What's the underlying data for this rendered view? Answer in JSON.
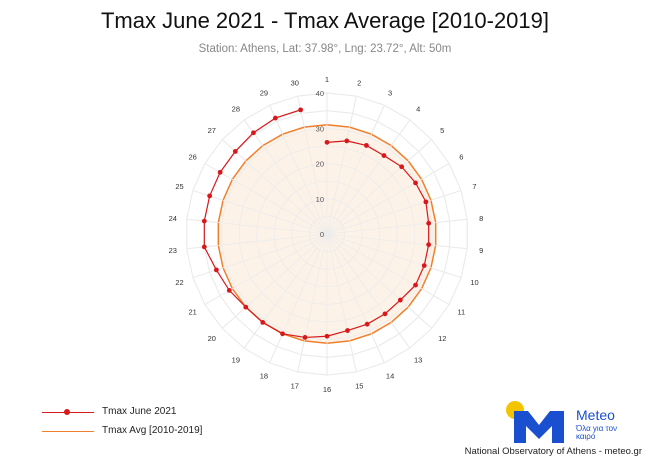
{
  "chart_data": {
    "type": "polar-line",
    "title": "Tmax June 2021 - Tmax Average [2010-2019]",
    "subtitle": "Station: Athens, Lat: 37.98°, Lng: 23.72°, Alt: 50m",
    "categories": [
      "1",
      "2",
      "3",
      "4",
      "5",
      "6",
      "7",
      "8",
      "9",
      "10",
      "11",
      "12",
      "13",
      "14",
      "15",
      "16",
      "17",
      "18",
      "19",
      "20",
      "21",
      "22",
      "23",
      "24",
      "25",
      "26",
      "27",
      "28",
      "29",
      "30"
    ],
    "radial_axis": {
      "min": 0,
      "max": 40,
      "ticks": [
        "0",
        "10",
        "20",
        "30",
        "40"
      ]
    },
    "series": [
      {
        "name": "Tmax June 2021",
        "color": "#d7191c",
        "marker": "circle",
        "values": [
          26,
          27,
          27.5,
          27.5,
          28.5,
          29,
          29.5,
          29,
          29,
          29,
          29,
          28,
          28,
          28,
          28,
          29,
          30,
          31,
          31,
          31,
          32,
          33,
          35,
          35,
          35,
          35,
          35,
          35.5,
          36,
          36
        ]
      },
      {
        "name": "Tmax Avg [2010-2019]",
        "color": "#f07f2e",
        "fill": "#fdf1e4",
        "values": [
          31,
          31,
          31,
          31,
          31,
          31,
          31,
          31,
          31,
          31,
          31,
          31,
          31,
          31,
          31,
          31,
          31,
          31,
          31,
          31,
          31,
          31,
          31,
          31,
          31,
          31,
          31,
          31,
          31,
          31
        ]
      }
    ],
    "grid": true,
    "legend_position": "bottom-left"
  },
  "logo": {
    "brand": "Meteo",
    "tagline": "Όλα για τον καιρό"
  },
  "footer": "National Observatory of Athens - meteo.gr"
}
